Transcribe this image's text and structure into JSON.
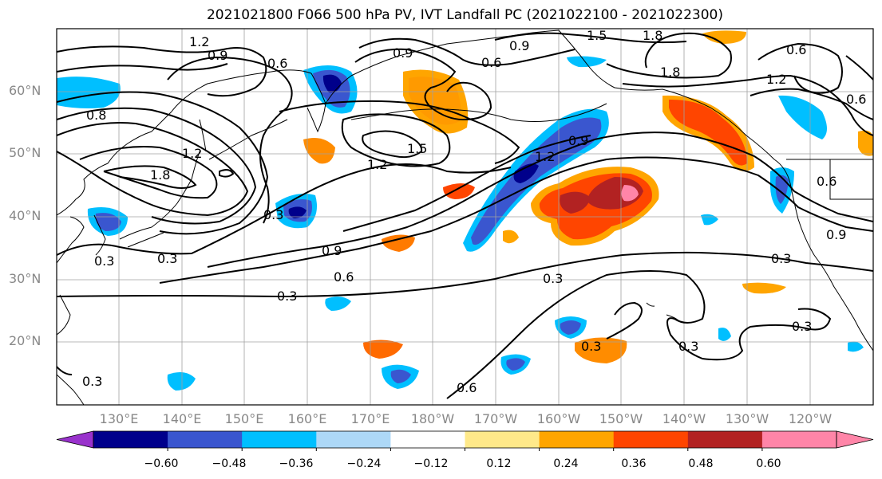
{
  "title": "2021021800 F066 500 hPa PV, IVT Landfall PC (2021022100 - 2021022300)",
  "lat_labels": [
    "60°N",
    "50°N",
    "40°N",
    "30°N",
    "20°N"
  ],
  "lon_labels": [
    "130°E",
    "140°E",
    "150°E",
    "160°E",
    "170°E",
    "180°W",
    "170°W",
    "160°W",
    "150°W",
    "140°W",
    "130°W",
    "120°W"
  ],
  "contour_labels": [
    "1.2",
    "0.9",
    "0.6",
    "0.9",
    "0.6",
    "0.9",
    "1.5",
    "1.8",
    "0.6",
    "1.2",
    "0.6",
    "1.8",
    "0.8",
    "1.2",
    "1.5",
    "1.2",
    "1.8",
    "1.2",
    "0.9",
    "0.3",
    "0.3",
    "0.3",
    "0.9",
    "0.6",
    "0.3",
    "0.3",
    "0.6",
    "0.9",
    "0.3",
    "0.3",
    "0.3",
    "0.3",
    "0.6",
    "0.3"
  ],
  "colorbar": {
    "tick_labels": [
      "−0.60",
      "−0.48",
      "−0.36",
      "−0.24",
      "−0.12",
      "0.12",
      "0.24",
      "0.36",
      "0.48",
      "0.60"
    ],
    "colors": [
      "#9932cc",
      "#00008b",
      "#3a56cf",
      "#00bfff",
      "#add8f7",
      "#ffffff",
      "#ffe98a",
      "#ffa500",
      "#ff4500",
      "#b22222",
      "#ff85a8",
      "#ff85a8"
    ]
  },
  "colors": {
    "grid": "#a0a0a0",
    "coastline": "#000000",
    "contour": "#000000",
    "axis_label": "#888888"
  }
}
